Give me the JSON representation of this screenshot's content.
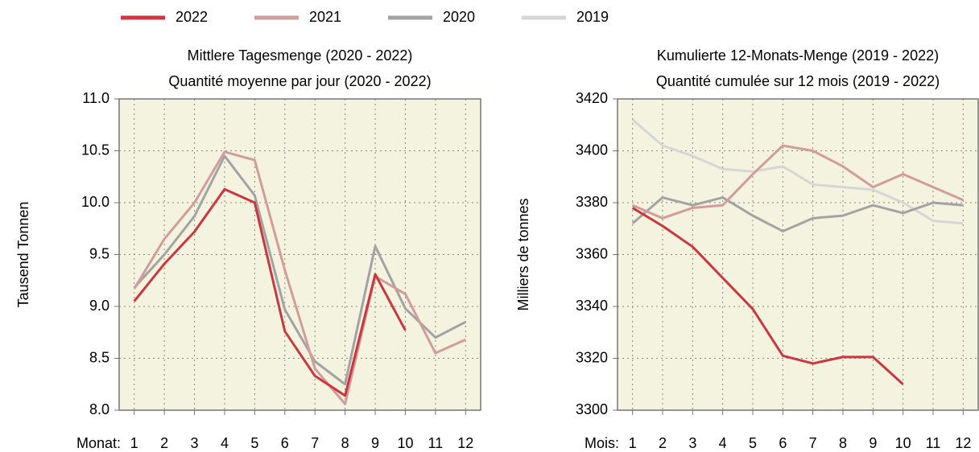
{
  "chart_data": [
    {
      "type": "line",
      "title": "Mittlere Tagesmenge (2020 - 2022)",
      "subtitle": "Quantité moyenne par jour (2020 - 2022)",
      "y_label": "Tausend Tonnen",
      "x_label": "Monat:",
      "categories": [
        "1",
        "2",
        "3",
        "4",
        "5",
        "6",
        "7",
        "8",
        "9",
        "10",
        "11",
        "12"
      ],
      "ylim": [
        8,
        11
      ],
      "yticks": [
        {
          "value": 8,
          "label": "8.0"
        },
        {
          "value": 8.5,
          "label": "8.5"
        },
        {
          "value": 9,
          "label": "9.0"
        },
        {
          "value": 9.5,
          "label": "9.5"
        },
        {
          "value": 10,
          "label": "10.0"
        },
        {
          "value": 10.5,
          "label": "10.5"
        },
        {
          "value": 11,
          "label": "11.0"
        }
      ],
      "grid": true,
      "background": "#f3f3e0",
      "series": [
        {
          "color": "#c8383e",
          "values": [
            9.05,
            9.41,
            9.72,
            10.13,
            10.0,
            8.76,
            8.33,
            8.14,
            9.31,
            8.77,
            null,
            null
          ]
        },
        {
          "color": "#d39c9c",
          "values": [
            9.17,
            9.65,
            10.0,
            10.49,
            10.41,
            9.35,
            8.4,
            8.06,
            9.29,
            9.12,
            8.55,
            8.68
          ]
        },
        {
          "color": "#a3a3a3",
          "values": [
            9.18,
            9.5,
            9.87,
            10.45,
            10.07,
            8.97,
            8.47,
            8.25,
            9.58,
            8.98,
            8.7,
            8.85
          ]
        }
      ]
    },
    {
      "type": "line",
      "title": "Kumulierte 12-Monats-Menge (2019 - 2022)",
      "subtitle": "Quantité cumulée sur 12 mois (2019 - 2022)",
      "y_label": "Milliers de tonnes",
      "x_label": "Mois:",
      "categories": [
        "1",
        "2",
        "3",
        "4",
        "5",
        "6",
        "7",
        "8",
        "9",
        "10",
        "11",
        "12"
      ],
      "ylim": [
        3300,
        3420
      ],
      "yticks": [
        3300,
        3320,
        3340,
        3360,
        3380,
        3400,
        3420
      ],
      "grid": true,
      "background": "#f3f3e0",
      "series": [
        {
          "name": "2022",
          "color": "#c8383e",
          "values": [
            3378,
            3371,
            3363,
            3351,
            3339,
            3321,
            3318,
            3320.5,
            3320.5,
            3310,
            null,
            null
          ]
        },
        {
          "name": "2021",
          "color": "#d39c9c",
          "values": [
            3379,
            3374,
            3378,
            3379,
            3391,
            3402,
            3400,
            3394,
            3386,
            3391,
            3386,
            3381
          ]
        },
        {
          "name": "2020",
          "color": "#a3a3a3",
          "values": [
            3372,
            3382,
            3379,
            3382,
            3375,
            3369,
            3374,
            3375,
            3379,
            3376,
            3380,
            3379
          ]
        },
        {
          "name": "2019",
          "color": "#d6d6d6",
          "values": [
            3412,
            3402,
            3398,
            3393,
            3392,
            3394,
            3387,
            3386,
            3385,
            3380,
            3373,
            3372
          ]
        }
      ]
    }
  ]
}
